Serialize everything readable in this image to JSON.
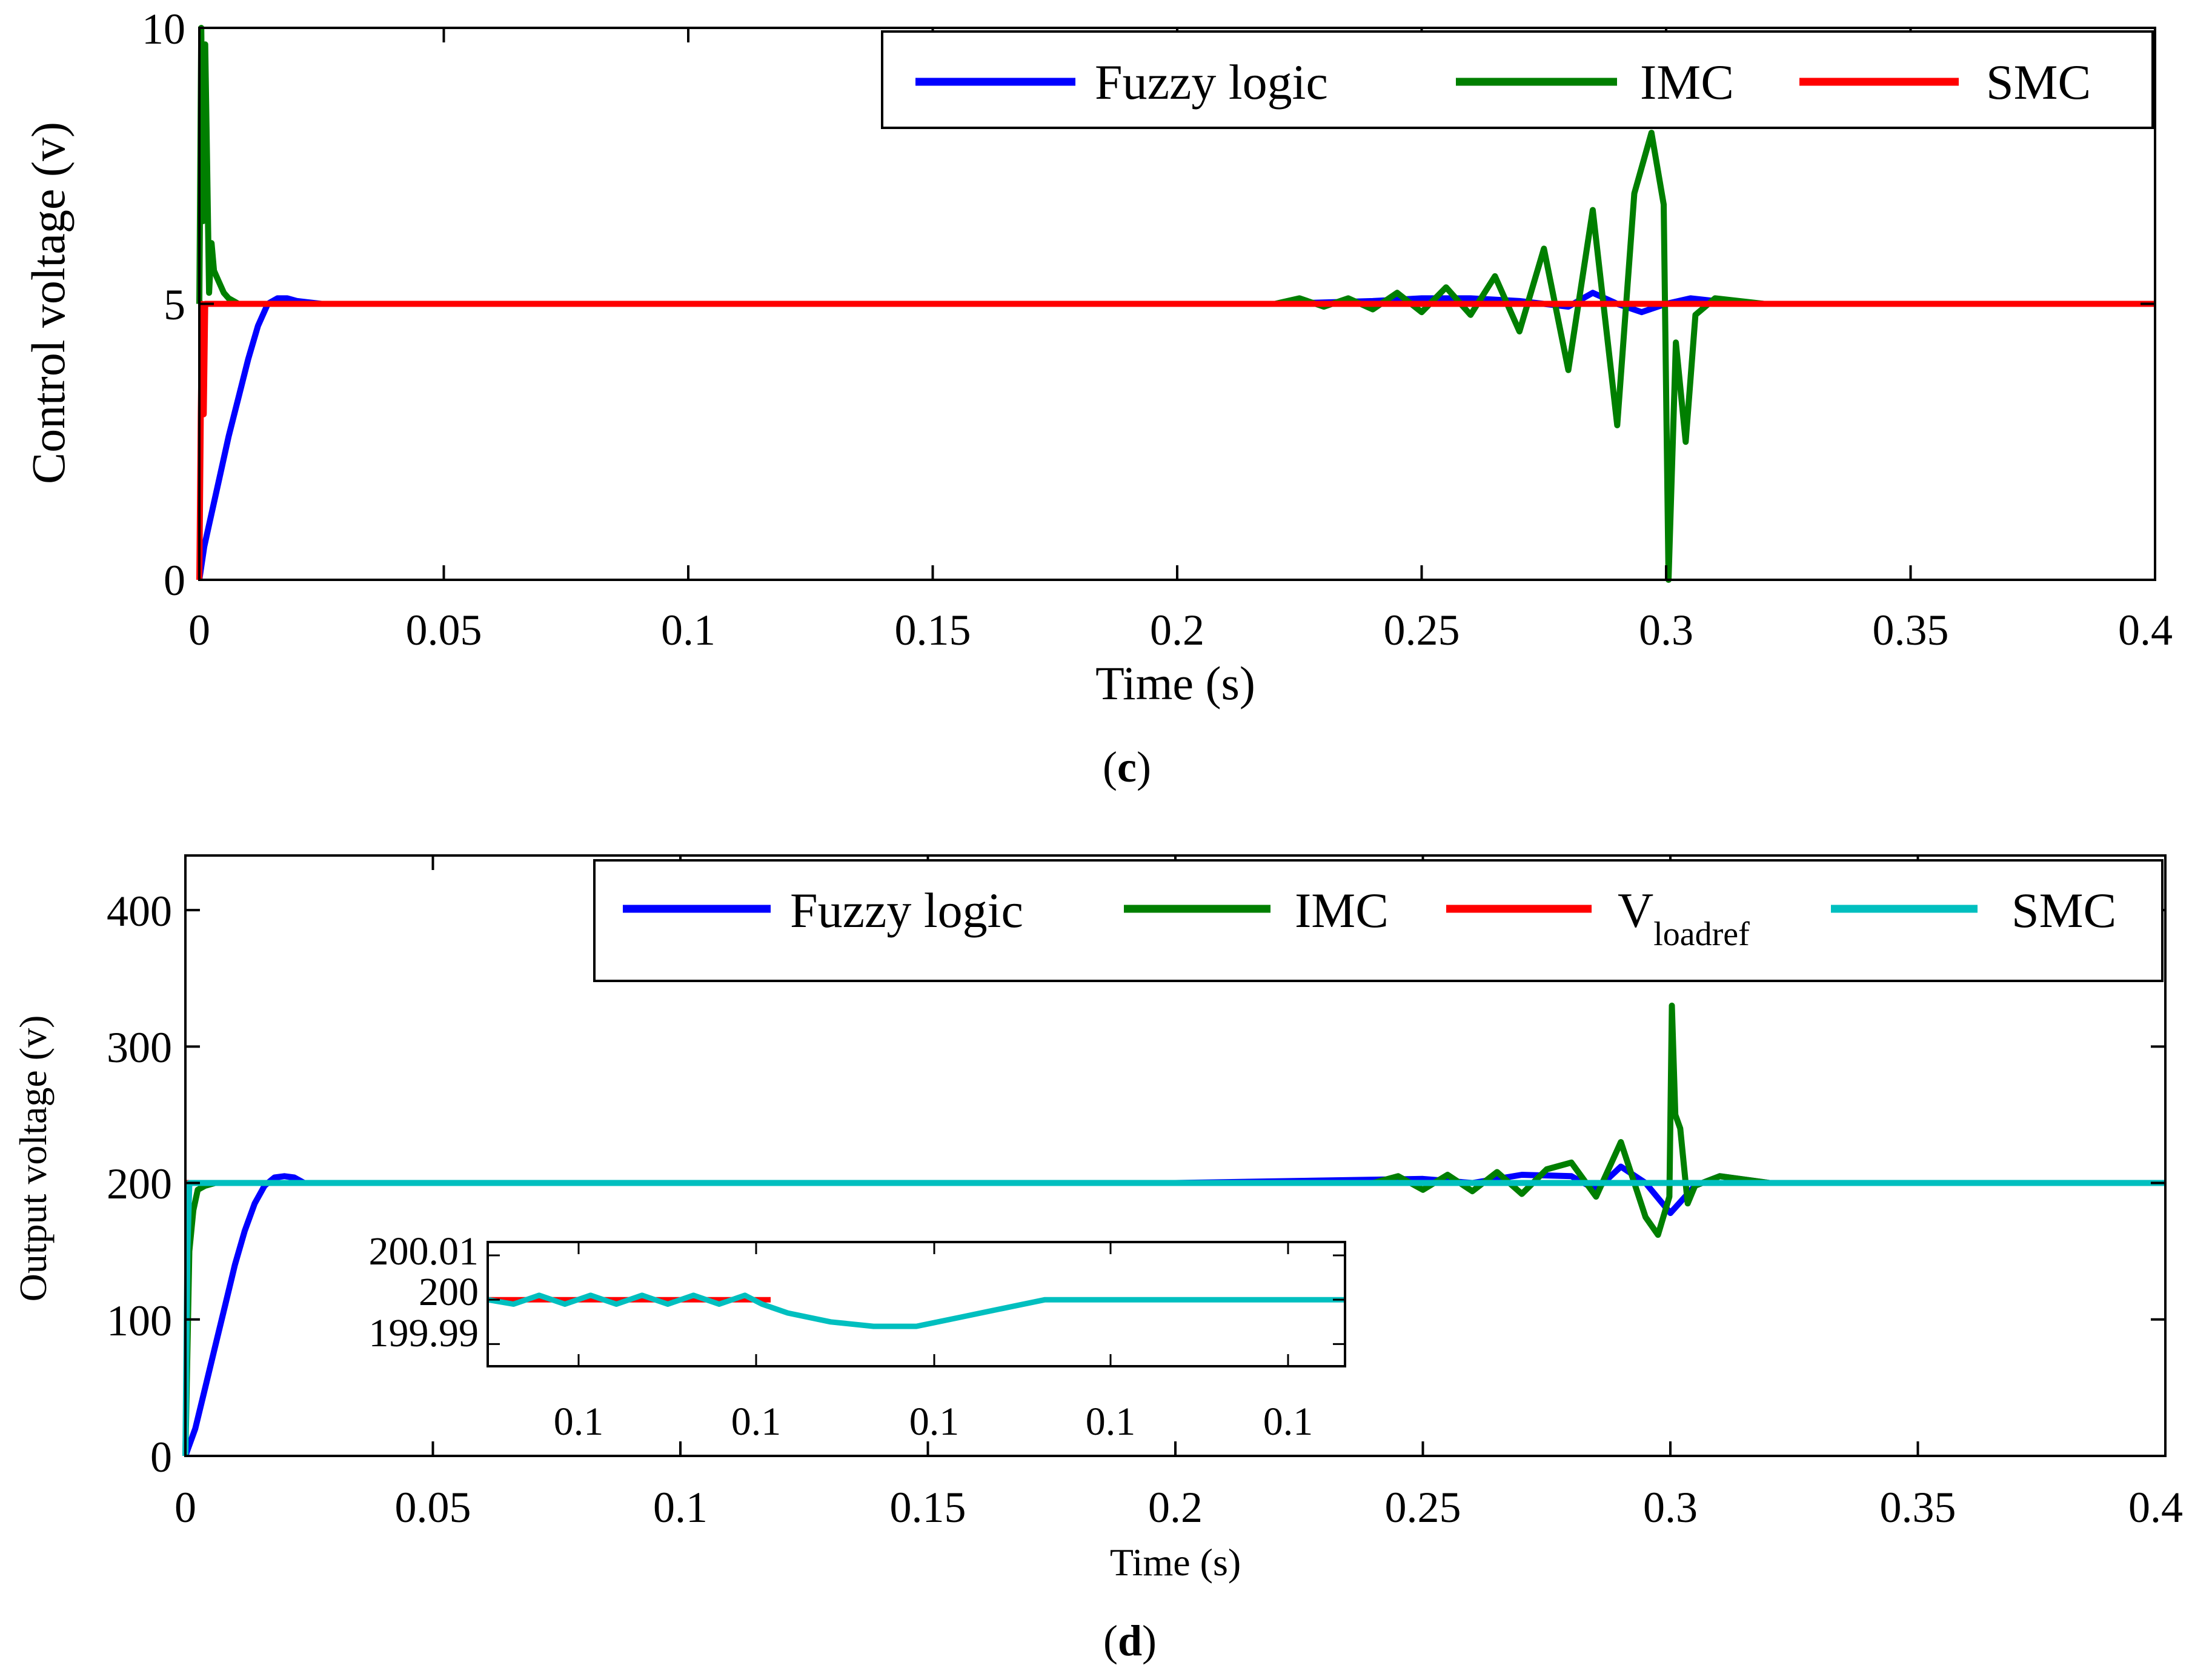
{
  "chart_data": [
    {
      "type": "line",
      "id": "c",
      "caption_open": "(",
      "caption_letter": "c",
      "caption_close": ")",
      "xlabel": "Time (s)",
      "ylabel": "Control voltage (v)",
      "xlim": [
        0,
        0.4
      ],
      "ylim": [
        0,
        10
      ],
      "x_ticks": [
        "0",
        "0.05",
        "0.1",
        "0.15",
        "0.2",
        "0.25",
        "0.3",
        "0.35",
        "0.4"
      ],
      "y_ticks": [
        "0",
        "5",
        "10"
      ],
      "legend": [
        "Fuzzy logic",
        "IMC",
        "SMC"
      ],
      "colors": {
        "fuzzy": "#0000ff",
        "imc": "#007f00",
        "smc": "#ff0000"
      },
      "series": [
        {
          "name": "Fuzzy logic",
          "color": "#0000ff",
          "x": [
            0,
            0.001,
            0.002,
            0.004,
            0.006,
            0.008,
            0.01,
            0.012,
            0.014,
            0.016,
            0.018,
            0.02,
            0.025,
            0.05,
            0.1,
            0.15,
            0.2,
            0.22,
            0.24,
            0.25,
            0.26,
            0.27,
            0.28,
            0.285,
            0.29,
            0.295,
            0.3,
            0.305,
            0.31,
            0.32,
            0.4
          ],
          "y": [
            0,
            0.6,
            1.0,
            1.8,
            2.6,
            3.3,
            4.0,
            4.6,
            5.0,
            5.1,
            5.1,
            5.05,
            5.0,
            5.0,
            5.0,
            5.0,
            5.0,
            5.0,
            5.05,
            5.1,
            5.1,
            5.05,
            4.95,
            5.2,
            5.0,
            4.85,
            5.0,
            5.1,
            5.05,
            5.0,
            5.0
          ]
        },
        {
          "name": "IMC",
          "color": "#007f00",
          "x": [
            0,
            0.0004,
            0.0008,
            0.0012,
            0.0016,
            0.002,
            0.0025,
            0.003,
            0.004,
            0.005,
            0.006,
            0.008,
            0.01,
            0.05,
            0.1,
            0.15,
            0.2,
            0.22,
            0.225,
            0.23,
            0.235,
            0.24,
            0.245,
            0.25,
            0.255,
            0.26,
            0.265,
            0.27,
            0.275,
            0.28,
            0.285,
            0.29,
            0.2935,
            0.297,
            0.2995,
            0.3005,
            0.302,
            0.304,
            0.306,
            0.31,
            0.32,
            0.4
          ],
          "y": [
            5,
            10,
            6.5,
            9.7,
            7.5,
            5.2,
            6.1,
            5.6,
            5.4,
            5.2,
            5.1,
            5.0,
            5.0,
            5.0,
            5.0,
            5.0,
            5.0,
            5.0,
            5.1,
            4.95,
            5.1,
            4.9,
            5.2,
            4.85,
            5.3,
            4.8,
            5.5,
            4.5,
            6.0,
            3.8,
            6.7,
            2.8,
            7.0,
            8.1,
            6.8,
            0.0,
            4.3,
            2.5,
            4.8,
            5.1,
            5.0,
            5.0
          ]
        },
        {
          "name": "SMC",
          "color": "#ff0000",
          "x": [
            0,
            0.0003,
            0.0006,
            0.0009,
            0.0012,
            0.0015,
            0.002,
            0.05,
            0.1,
            0.2,
            0.3,
            0.4
          ],
          "y": [
            0,
            3.0,
            5.0,
            3.0,
            5.0,
            5.0,
            5.0,
            5.0,
            5.0,
            5.0,
            5.0,
            5.0
          ]
        }
      ]
    },
    {
      "type": "line",
      "id": "d",
      "caption_open": "(",
      "caption_letter": "d",
      "caption_close": ")",
      "xlabel": "Time (s)",
      "ylabel": "Output voltage (v)",
      "xlim": [
        0,
        0.4
      ],
      "ylim": [
        0,
        440
      ],
      "x_ticks": [
        "0",
        "0.05",
        "0.1",
        "0.15",
        "0.2",
        "0.25",
        "0.3",
        "0.35",
        "0.4"
      ],
      "y_ticks": [
        "0",
        "100",
        "200",
        "300",
        "400"
      ],
      "legend": [
        "Fuzzy logic",
        "IMC",
        "V",
        "SMC"
      ],
      "legend_subscript": "loadref",
      "colors": {
        "fuzzy": "#0000ff",
        "imc": "#007f00",
        "vref": "#ff0000",
        "smc": "#00bfbf"
      },
      "series": [
        {
          "name": "Fuzzy logic",
          "color": "#0000ff",
          "x": [
            0,
            0.002,
            0.004,
            0.006,
            0.008,
            0.01,
            0.012,
            0.014,
            0.016,
            0.018,
            0.02,
            0.022,
            0.024,
            0.05,
            0.1,
            0.2,
            0.25,
            0.26,
            0.27,
            0.28,
            0.285,
            0.29,
            0.295,
            0.3,
            0.305,
            0.31,
            0.32,
            0.4
          ],
          "y": [
            0,
            20,
            50,
            80,
            110,
            140,
            165,
            185,
            198,
            204,
            205,
            204,
            200,
            200,
            200,
            200,
            203,
            200,
            206,
            205,
            195,
            212,
            200,
            178,
            198,
            205,
            200,
            200
          ]
        },
        {
          "name": "IMC",
          "color": "#007f00",
          "x": [
            0,
            0.0008,
            0.0016,
            0.0025,
            0.004,
            0.006,
            0.01,
            0.05,
            0.1,
            0.2,
            0.24,
            0.245,
            0.25,
            0.255,
            0.26,
            0.265,
            0.27,
            0.275,
            0.28,
            0.285,
            0.29,
            0.295,
            0.2975,
            0.2998,
            0.3003,
            0.301,
            0.302,
            0.3035,
            0.305,
            0.31,
            0.32,
            0.4
          ],
          "y": [
            0,
            150,
            180,
            195,
            198,
            200,
            200,
            200,
            200,
            200,
            200,
            205,
            195,
            206,
            194,
            208,
            192,
            210,
            215,
            190,
            230,
            175,
            162,
            190,
            330,
            250,
            240,
            185,
            198,
            205,
            200,
            200
          ]
        },
        {
          "name": "V_loadref",
          "color": "#ff0000",
          "x": [
            0,
            0.4
          ],
          "y": [
            200,
            200
          ]
        },
        {
          "name": "SMC",
          "color": "#00bfbf",
          "x": [
            0,
            0.0004,
            0.0008,
            0.0012,
            0.002,
            0.05,
            0.1,
            0.2,
            0.3,
            0.4
          ],
          "y": [
            0,
            150,
            200,
            200,
            200,
            200,
            200,
            200,
            200,
            200
          ]
        }
      ],
      "inset": {
        "y_ticks": [
          "200.01",
          "200",
          "199.99"
        ],
        "y_values": [
          200.01,
          200,
          199.99
        ],
        "ylim": [
          199.985,
          200.013
        ],
        "x_ticks": [
          "0.1",
          "0.1",
          "0.1",
          "0.1",
          "0.1"
        ],
        "series": [
          {
            "name": "V_loadref",
            "color": "#ff0000",
            "x": [
              0,
              0.33
            ],
            "y": [
              200,
              200
            ]
          },
          {
            "name": "SMC",
            "color": "#00bfbf",
            "x": [
              0,
              0.03,
              0.06,
              0.09,
              0.12,
              0.15,
              0.18,
              0.21,
              0.24,
              0.27,
              0.3,
              0.32,
              0.35,
              0.4,
              0.45,
              0.5,
              0.55,
              0.6,
              0.65,
              0.7,
              0.8,
              0.9,
              1.0
            ],
            "y": [
              200,
              199.999,
              200.001,
              199.999,
              200.001,
              199.999,
              200.001,
              199.999,
              200.001,
              199.999,
              200.001,
              199.999,
              199.997,
              199.995,
              199.994,
              199.994,
              199.996,
              199.998,
              200.0,
              200.0,
              200.0,
              200.0,
              200.0
            ]
          }
        ]
      }
    }
  ]
}
